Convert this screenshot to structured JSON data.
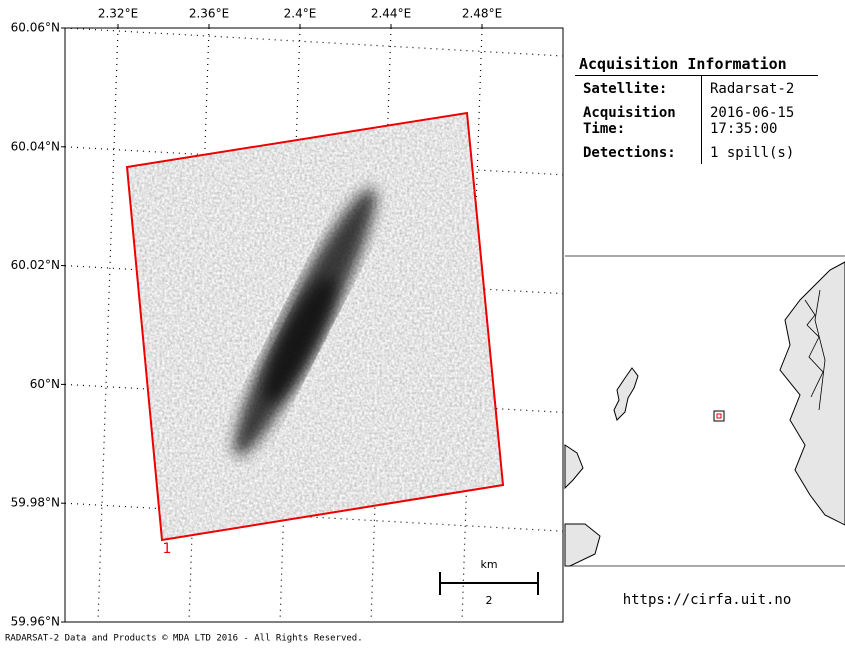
{
  "map": {
    "lon_ticks": [
      {
        "value": 2.32,
        "label": "2.32°E"
      },
      {
        "value": 2.36,
        "label": "2.36°E"
      },
      {
        "value": 2.4,
        "label": "2.4°E"
      },
      {
        "value": 2.44,
        "label": "2.44°E"
      },
      {
        "value": 2.48,
        "label": "2.48°E"
      }
    ],
    "lat_ticks": [
      {
        "value": 60.06,
        "label": "60.06°N"
      },
      {
        "value": 60.04,
        "label": "60.04°N"
      },
      {
        "value": 60.02,
        "label": "60.02°N"
      },
      {
        "value": 60,
        "label": "60°N"
      },
      {
        "value": 59.98,
        "label": "59.98°N"
      },
      {
        "value": 59.96,
        "label": "59.96°N"
      }
    ],
    "xlim": [
      2.2967,
      2.5156
    ],
    "ylim": [
      59.96,
      60.06
    ],
    "detection_label": "1",
    "scale_bar": {
      "unit": "km",
      "length_label": "2"
    }
  },
  "info": {
    "title": "Acquisition Information",
    "rows": [
      [
        "Satellite:",
        "Radarsat-2"
      ],
      [
        "Acquisition Time:",
        "2016-06-15 17:35:00"
      ],
      [
        "Detections:",
        "1 spill(s)"
      ]
    ]
  },
  "url": "https://cirfa.uit.no",
  "copyright": "RADARSAT-2 Data and Products © MDA LTD 2016 - All Rights Reserved."
}
